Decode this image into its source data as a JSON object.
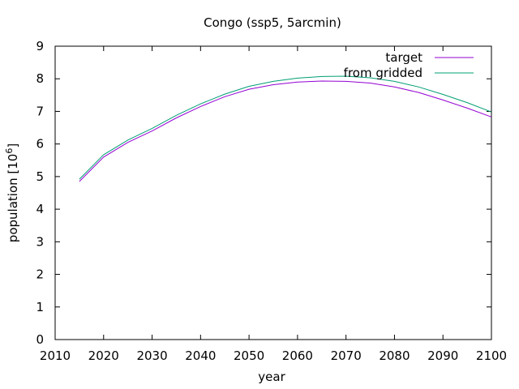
{
  "chart_data": {
    "type": "line",
    "title": "Congo (ssp5, 5arcmin)",
    "xlabel": "year",
    "ylabel": "population [10",
    "ylabel_sup": "6",
    "ylabel_close": "]",
    "xlim": [
      2010,
      2100
    ],
    "ylim": [
      0,
      9
    ],
    "xticks": [
      2010,
      2020,
      2030,
      2040,
      2050,
      2060,
      2070,
      2080,
      2090,
      2100
    ],
    "yticks": [
      0,
      1,
      2,
      3,
      4,
      5,
      6,
      7,
      8,
      9
    ],
    "grid": false,
    "legend_position": "top-right",
    "series": [
      {
        "name": "target",
        "color": "#9400d3",
        "x": [
          2015,
          2020,
          2025,
          2030,
          2035,
          2040,
          2045,
          2050,
          2055,
          2060,
          2065,
          2070,
          2075,
          2080,
          2085,
          2090,
          2095,
          2100
        ],
        "y": [
          4.85,
          5.6,
          6.05,
          6.4,
          6.8,
          7.15,
          7.45,
          7.68,
          7.82,
          7.9,
          7.93,
          7.92,
          7.87,
          7.75,
          7.58,
          7.35,
          7.1,
          6.83
        ]
      },
      {
        "name": "from gridded",
        "color": "#009e73",
        "x": [
          2015,
          2020,
          2025,
          2030,
          2035,
          2040,
          2045,
          2050,
          2055,
          2060,
          2065,
          2070,
          2075,
          2080,
          2085,
          2090,
          2095,
          2100
        ],
        "y": [
          4.92,
          5.67,
          6.12,
          6.48,
          6.88,
          7.23,
          7.53,
          7.77,
          7.92,
          8.02,
          8.07,
          8.08,
          8.03,
          7.92,
          7.75,
          7.52,
          7.27,
          6.98
        ]
      }
    ]
  }
}
